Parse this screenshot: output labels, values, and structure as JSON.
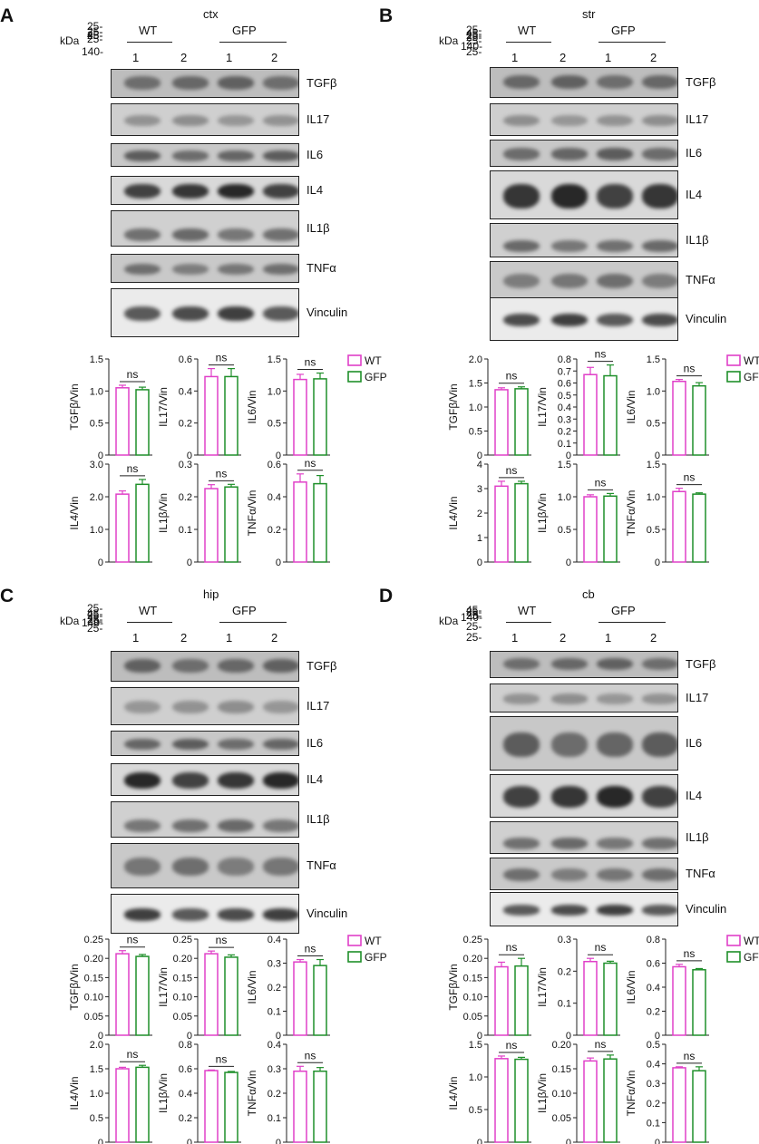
{
  "kda": "kDa",
  "groups": [
    "WT",
    "GFP"
  ],
  "lanes": [
    "1",
    "2",
    "1",
    "2"
  ],
  "colors": {
    "wt": "#e040c8",
    "gfp": "#1f8f2a"
  },
  "panels": [
    {
      "letter": "A",
      "region": "ctx",
      "blots": [
        {
          "protein": "TGFβ",
          "mw": "45-"
        },
        {
          "protein": "IL17",
          "mw": "25-"
        },
        {
          "protein": "IL6",
          "mw": "25-"
        },
        {
          "protein": "IL4",
          "mw": "25-"
        },
        {
          "protein": "IL1β",
          "mw": "25-"
        },
        {
          "protein": "TNFα",
          "mw": "25-"
        },
        {
          "protein": "Vinculin",
          "mw": "140-"
        }
      ],
      "charts": [
        {
          "ylabel": "TGFβ/Vin",
          "ticks": [
            "0",
            "0.5",
            "1.0",
            "1.5"
          ],
          "ylim": [
            0,
            1.5
          ],
          "values": [
            1.05,
            1.02
          ],
          "errors": [
            0.04,
            0.04
          ],
          "annotation": "ns"
        },
        {
          "ylabel": "IL17/Vin",
          "ticks": [
            "0",
            "0.2",
            "0.4",
            "0.6"
          ],
          "ylim": [
            0,
            0.6
          ],
          "values": [
            0.49,
            0.49
          ],
          "errors": [
            0.05,
            0.05
          ],
          "annotation": "ns"
        },
        {
          "ylabel": "IL6/Vin",
          "ticks": [
            "0",
            "0.5",
            "1.0",
            "1.5"
          ],
          "ylim": [
            0,
            1.5
          ],
          "values": [
            1.18,
            1.19
          ],
          "errors": [
            0.08,
            0.09
          ],
          "annotation": "ns"
        },
        {
          "ylabel": "IL4/Vin",
          "ticks": [
            "0",
            "1.0",
            "2.0",
            "3.0"
          ],
          "ylim": [
            0,
            3.0
          ],
          "values": [
            2.08,
            2.38
          ],
          "errors": [
            0.1,
            0.15
          ],
          "annotation": "ns"
        },
        {
          "ylabel": "IL1β/Vin",
          "ticks": [
            "0",
            "0.1",
            "0.2",
            "0.3"
          ],
          "ylim": [
            0,
            0.3
          ],
          "values": [
            0.225,
            0.23
          ],
          "errors": [
            0.012,
            0.008
          ],
          "annotation": "ns"
        },
        {
          "ylabel": "TNFα/Vin",
          "ticks": [
            "0",
            "0.2",
            "0.4",
            "0.6"
          ],
          "ylim": [
            0,
            0.6
          ],
          "values": [
            0.49,
            0.48
          ],
          "errors": [
            0.05,
            0.05
          ],
          "annotation": "ns"
        }
      ]
    },
    {
      "letter": "B",
      "region": "str",
      "blots": [
        {
          "protein": "TGFβ",
          "mw": "45-"
        },
        {
          "protein": "IL17",
          "mw": "25-"
        },
        {
          "protein": "IL6",
          "mw": "25-"
        },
        {
          "protein": "IL4",
          "mw": "25-"
        },
        {
          "protein": "IL1β",
          "mw": "25-"
        },
        {
          "protein": "TNFα",
          "mw": "25-"
        },
        {
          "protein": "Vinculin",
          "mw": "140-"
        }
      ],
      "charts": [
        {
          "ylabel": "TGFβ/Vin",
          "ticks": [
            "0",
            "0.5",
            "1.0",
            "1.5",
            "2.0"
          ],
          "ylim": [
            0,
            2.0
          ],
          "values": [
            1.36,
            1.38
          ],
          "errors": [
            0.04,
            0.04
          ],
          "annotation": "ns"
        },
        {
          "ylabel": "IL17/Vin",
          "ticks": [
            "0",
            "0.1",
            "0.2",
            "0.3",
            "0.4",
            "0.5",
            "0.6",
            "0.7",
            "0.8"
          ],
          "ylim": [
            0,
            0.8
          ],
          "values": [
            0.67,
            0.66
          ],
          "errors": [
            0.06,
            0.09
          ],
          "annotation": "ns"
        },
        {
          "ylabel": "IL6/Vin",
          "ticks": [
            "0",
            "0.5",
            "1.0",
            "1.5"
          ],
          "ylim": [
            0,
            1.5
          ],
          "values": [
            1.15,
            1.08
          ],
          "errors": [
            0.03,
            0.05
          ],
          "annotation": "ns"
        },
        {
          "ylabel": "IL4/Vin",
          "ticks": [
            "0",
            "1",
            "2",
            "3",
            "4"
          ],
          "ylim": [
            0,
            4
          ],
          "values": [
            3.1,
            3.2
          ],
          "errors": [
            0.2,
            0.1
          ],
          "annotation": "ns"
        },
        {
          "ylabel": "IL1β/Vin",
          "ticks": [
            "0",
            "0.5",
            "1.0",
            "1.5"
          ],
          "ylim": [
            0,
            1.5
          ],
          "values": [
            1.0,
            1.01
          ],
          "errors": [
            0.03,
            0.04
          ],
          "annotation": "ns"
        },
        {
          "ylabel": "TNFα/Vin",
          "ticks": [
            "0",
            "0.5",
            "1.0",
            "1.5"
          ],
          "ylim": [
            0,
            1.5
          ],
          "values": [
            1.08,
            1.04
          ],
          "errors": [
            0.05,
            0.02
          ],
          "annotation": "ns"
        }
      ]
    },
    {
      "letter": "C",
      "region": "hip",
      "blots": [
        {
          "protein": "TGFβ",
          "mw": "45-"
        },
        {
          "protein": "IL17",
          "mw": "25-"
        },
        {
          "protein": "IL6",
          "mw": "25-"
        },
        {
          "protein": "IL4",
          "mw": "25-"
        },
        {
          "protein": "IL1β",
          "mw": "25-"
        },
        {
          "protein": "TNFα",
          "mw": "25-"
        },
        {
          "protein": "Vinculin",
          "mw": "140-"
        }
      ],
      "charts": [
        {
          "ylabel": "TGFβ/Vin",
          "ticks": [
            "0",
            "0.05",
            "0.10",
            "0.15",
            "0.20",
            "0.25"
          ],
          "ylim": [
            0,
            0.25
          ],
          "values": [
            0.212,
            0.205
          ],
          "errors": [
            0.008,
            0.005
          ],
          "annotation": "ns"
        },
        {
          "ylabel": "IL17/Vin",
          "ticks": [
            "0",
            "0.05",
            "0.10",
            "0.15",
            "0.20",
            "0.25"
          ],
          "ylim": [
            0,
            0.25
          ],
          "values": [
            0.212,
            0.203
          ],
          "errors": [
            0.007,
            0.006
          ],
          "annotation": "ns"
        },
        {
          "ylabel": "IL6/Vin",
          "ticks": [
            "0",
            "0.1",
            "0.2",
            "0.3",
            "0.4"
          ],
          "ylim": [
            0,
            0.4
          ],
          "values": [
            0.305,
            0.29
          ],
          "errors": [
            0.01,
            0.025
          ],
          "annotation": "ns"
        },
        {
          "ylabel": "IL4/Vin",
          "ticks": [
            "0",
            "0.5",
            "1.0",
            "1.5",
            "2.0"
          ],
          "ylim": [
            0,
            2.0
          ],
          "values": [
            1.5,
            1.53
          ],
          "errors": [
            0.03,
            0.04
          ],
          "annotation": "ns"
        },
        {
          "ylabel": "IL1β/Vin",
          "ticks": [
            "0",
            "0.2",
            "0.4",
            "0.6",
            "0.8"
          ],
          "ylim": [
            0,
            0.8
          ],
          "values": [
            0.585,
            0.57
          ],
          "errors": [
            0.005,
            0.008
          ],
          "annotation": "ns"
        },
        {
          "ylabel": "TNFα/Vin",
          "ticks": [
            "0",
            "0.1",
            "0.2",
            "0.3",
            "0.4"
          ],
          "ylim": [
            0,
            0.4
          ],
          "values": [
            0.29,
            0.29
          ],
          "errors": [
            0.02,
            0.015
          ],
          "annotation": "ns"
        }
      ]
    },
    {
      "letter": "D",
      "region": "cb",
      "blots": [
        {
          "protein": "TGFβ",
          "mw": "45-"
        },
        {
          "protein": "IL17",
          "mw": "25-"
        },
        {
          "protein": "IL6",
          "mw": "25-"
        },
        {
          "protein": "IL4",
          "mw": "25-"
        },
        {
          "protein": "IL1β",
          "mw": "25-"
        },
        {
          "protein": "TNFα",
          "mw": "25-"
        },
        {
          "protein": "Vinculin",
          "mw": "140-"
        }
      ],
      "charts": [
        {
          "ylabel": "TGFβ/Vin",
          "ticks": [
            "0",
            "0.05",
            "0.10",
            "0.15",
            "0.20",
            "0.25"
          ],
          "ylim": [
            0,
            0.25
          ],
          "values": [
            0.178,
            0.18
          ],
          "errors": [
            0.012,
            0.02
          ],
          "annotation": "ns"
        },
        {
          "ylabel": "IL17/Vin",
          "ticks": [
            "0",
            "0.1",
            "0.2",
            "0.3"
          ],
          "ylim": [
            0,
            0.3
          ],
          "values": [
            0.23,
            0.225
          ],
          "errors": [
            0.01,
            0.006
          ],
          "annotation": "ns"
        },
        {
          "ylabel": "IL6/Vin",
          "ticks": [
            "0",
            "0.2",
            "0.4",
            "0.6",
            "0.8"
          ],
          "ylim": [
            0,
            0.8
          ],
          "values": [
            0.57,
            0.545
          ],
          "errors": [
            0.02,
            0.01
          ],
          "annotation": "ns"
        },
        {
          "ylabel": "IL4/Vin",
          "ticks": [
            "0",
            "0.5",
            "1.0",
            "1.5"
          ],
          "ylim": [
            0,
            1.5
          ],
          "values": [
            1.28,
            1.27
          ],
          "errors": [
            0.04,
            0.03
          ],
          "annotation": "ns"
        },
        {
          "ylabel": "IL1β/Vin",
          "ticks": [
            "0",
            "0.05",
            "0.10",
            "0.15",
            "0.20"
          ],
          "ylim": [
            0,
            0.2
          ],
          "values": [
            0.166,
            0.17
          ],
          "errors": [
            0.006,
            0.008
          ],
          "annotation": "ns"
        },
        {
          "ylabel": "TNFα/Vin",
          "ticks": [
            "0",
            "0.1",
            "0.2",
            "0.3",
            "0.4",
            "0.5"
          ],
          "ylim": [
            0,
            0.5
          ],
          "values": [
            0.38,
            0.365
          ],
          "errors": [
            0.005,
            0.02
          ],
          "annotation": "ns"
        }
      ]
    }
  ],
  "chart_data": [
    {
      "type": "bar",
      "title": "ctx",
      "categories": [
        "WT",
        "GFP"
      ],
      "series": [
        {
          "name": "TGFβ/Vin",
          "values": [
            1.05,
            1.02
          ]
        },
        {
          "name": "IL17/Vin",
          "values": [
            0.49,
            0.49
          ]
        },
        {
          "name": "IL6/Vin",
          "values": [
            1.18,
            1.19
          ]
        },
        {
          "name": "IL4/Vin",
          "values": [
            2.08,
            2.38
          ]
        },
        {
          "name": "IL1β/Vin",
          "values": [
            0.225,
            0.23
          ]
        },
        {
          "name": "TNFα/Vin",
          "values": [
            0.49,
            0.48
          ]
        }
      ]
    },
    {
      "type": "bar",
      "title": "str",
      "categories": [
        "WT",
        "GFP"
      ],
      "series": [
        {
          "name": "TGFβ/Vin",
          "values": [
            1.36,
            1.38
          ]
        },
        {
          "name": "IL17/Vin",
          "values": [
            0.67,
            0.66
          ]
        },
        {
          "name": "IL6/Vin",
          "values": [
            1.15,
            1.08
          ]
        },
        {
          "name": "IL4/Vin",
          "values": [
            3.1,
            3.2
          ]
        },
        {
          "name": "IL1β/Vin",
          "values": [
            1.0,
            1.01
          ]
        },
        {
          "name": "TNFα/Vin",
          "values": [
            1.08,
            1.04
          ]
        }
      ]
    },
    {
      "type": "bar",
      "title": "hip",
      "categories": [
        "WT",
        "GFP"
      ],
      "series": [
        {
          "name": "TGFβ/Vin",
          "values": [
            0.212,
            0.205
          ]
        },
        {
          "name": "IL17/Vin",
          "values": [
            0.212,
            0.203
          ]
        },
        {
          "name": "IL6/Vin",
          "values": [
            0.305,
            0.29
          ]
        },
        {
          "name": "IL4/Vin",
          "values": [
            1.5,
            1.53
          ]
        },
        {
          "name": "IL1β/Vin",
          "values": [
            0.585,
            0.57
          ]
        },
        {
          "name": "TNFα/Vin",
          "values": [
            0.29,
            0.29
          ]
        }
      ]
    },
    {
      "type": "bar",
      "title": "cb",
      "categories": [
        "WT",
        "GFP"
      ],
      "series": [
        {
          "name": "TGFβ/Vin",
          "values": [
            0.178,
            0.18
          ]
        },
        {
          "name": "IL17/Vin",
          "values": [
            0.23,
            0.225
          ]
        },
        {
          "name": "IL6/Vin",
          "values": [
            0.57,
            0.545
          ]
        },
        {
          "name": "IL4/Vin",
          "values": [
            1.28,
            1.27
          ]
        },
        {
          "name": "IL1β/Vin",
          "values": [
            0.166,
            0.17
          ]
        },
        {
          "name": "TNFα/Vin",
          "values": [
            0.38,
            0.365
          ]
        }
      ]
    }
  ]
}
